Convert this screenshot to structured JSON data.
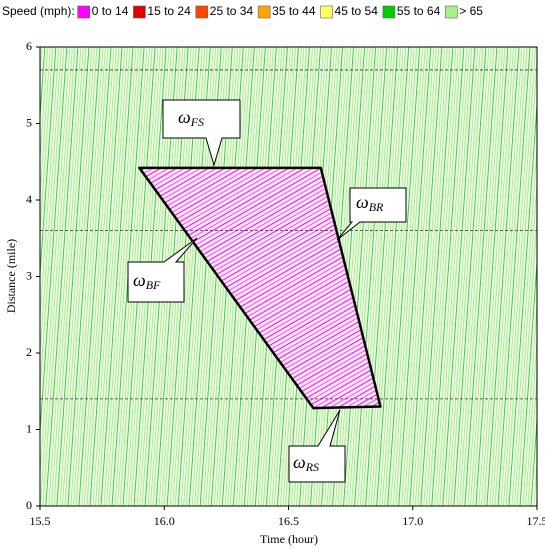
{
  "chart_data": {
    "type": "time-space",
    "legend_title": "Speed (mph):",
    "series": [
      {
        "name": "0 to 14",
        "color": "#ff00ff"
      },
      {
        "name": "15 to 24",
        "color": "#e00000"
      },
      {
        "name": "25 to 34",
        "color": "#ff4500"
      },
      {
        "name": "35 to 44",
        "color": "#ffa500"
      },
      {
        "name": "45 to 54",
        "color": "#ffff66"
      },
      {
        "name": "55 to 64",
        "color": "#00cc00"
      },
      {
        "name": "> 65",
        "color": "#a8f088"
      }
    ],
    "xlabel": "Time (hour)",
    "ylabel": "Distance (mile)",
    "xlim": [
      15.5,
      17.5
    ],
    "ylim": [
      0,
      6
    ],
    "xticks": [
      15.5,
      {
        "value": 16,
        "label": "16.0"
      },
      16.5,
      {
        "value": 17,
        "label": "17.0"
      },
      17.5
    ],
    "yticks": [
      0,
      1,
      2,
      3,
      4,
      5,
      6
    ],
    "hlines": [
      1.4,
      3.6,
      5.7
    ],
    "polygon": {
      "x": [
        15.9,
        16.63,
        16.87,
        16.6
      ],
      "y": [
        4.42,
        4.42,
        1.3,
        1.28
      ]
    },
    "annotations": [
      {
        "symbol": "ω",
        "sub": "FS"
      },
      {
        "symbol": "ω",
        "sub": "BR"
      },
      {
        "symbol": "ω",
        "sub": "BF"
      },
      {
        "symbol": "ω",
        "sub": "RS"
      }
    ]
  }
}
